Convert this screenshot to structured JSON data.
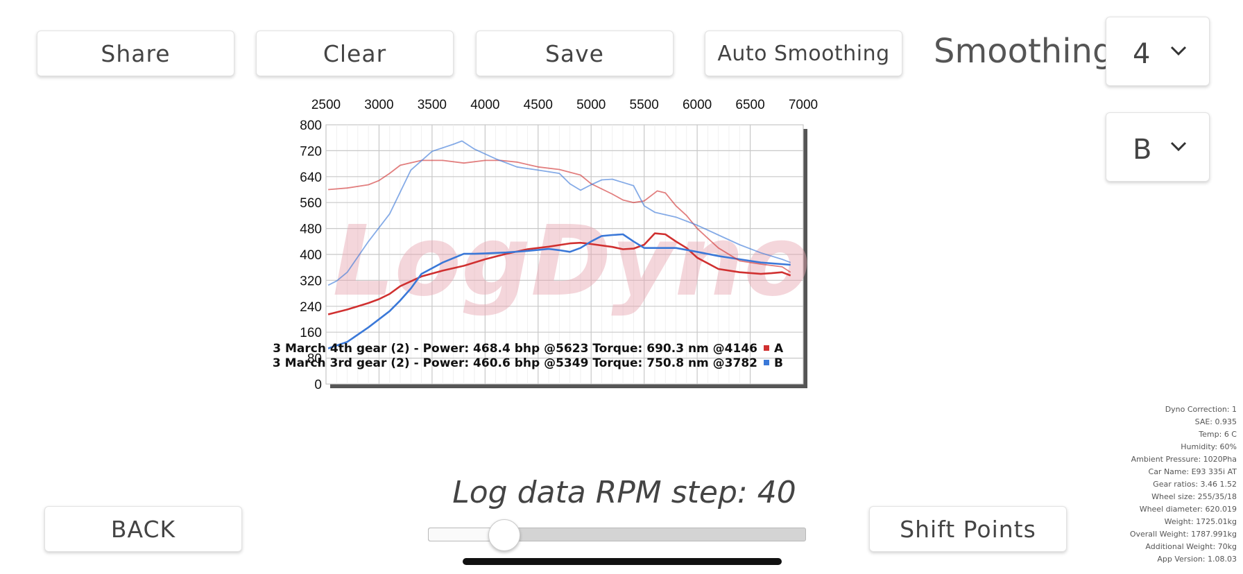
{
  "toolbar": {
    "share_label": "Share",
    "clear_label": "Clear",
    "save_label": "Save",
    "auto_smoothing_label": "Auto Smoothing"
  },
  "smoothing": {
    "label": "Smoothing:",
    "value": "4"
  },
  "run_select": {
    "value": "B"
  },
  "chart_data": {
    "type": "line",
    "watermark": "LogDyno",
    "x_ticks": [
      "2500",
      "3000",
      "3500",
      "4000",
      "4500",
      "5000",
      "5500",
      "6000",
      "6500",
      "7000"
    ],
    "y_ticks": [
      "800",
      "720",
      "640",
      "560",
      "480",
      "400",
      "320",
      "240",
      "160",
      "80",
      "0"
    ],
    "xlim": [
      2500,
      7000
    ],
    "ylim": [
      0,
      800
    ],
    "grid": true,
    "colors": {
      "A": "#d03030",
      "B": "#3a78d8"
    },
    "series": [
      {
        "name": "A",
        "kind": "power",
        "color": "#d03030",
        "x": [
          2520,
          2700,
          2900,
          3000,
          3100,
          3200,
          3400,
          3600,
          3800,
          4000,
          4200,
          4400,
          4600,
          4800,
          4900,
          5000,
          5200,
          5300,
          5400,
          5500,
          5600,
          5700,
          5800,
          5900,
          6000,
          6200,
          6400,
          6600,
          6700,
          6800,
          6880
        ],
        "y": [
          215,
          230,
          250,
          262,
          278,
          302,
          332,
          350,
          365,
          385,
          402,
          416,
          424,
          434,
          436,
          432,
          423,
          416,
          418,
          430,
          465,
          462,
          440,
          420,
          390,
          355,
          345,
          340,
          342,
          345,
          335
        ]
      },
      {
        "name": "B",
        "kind": "power",
        "color": "#3a78d8",
        "x": [
          2520,
          2700,
          2900,
          3100,
          3200,
          3300,
          3400,
          3600,
          3800,
          3900,
          4000,
          4200,
          4400,
          4600,
          4700,
          4800,
          4900,
          5000,
          5100,
          5200,
          5300,
          5400,
          5500,
          5600,
          5700,
          5800,
          6000,
          6200,
          6400,
          6600,
          6800,
          6880
        ],
        "y": [
          110,
          130,
          175,
          225,
          258,
          295,
          340,
          375,
          402,
          402,
          403,
          406,
          411,
          417,
          413,
          408,
          420,
          440,
          457,
          460,
          462,
          440,
          420,
          420,
          420,
          420,
          408,
          395,
          385,
          375,
          370,
          368
        ]
      },
      {
        "name": "A",
        "kind": "torque",
        "color": "#d03030",
        "x": [
          2520,
          2700,
          2900,
          3000,
          3100,
          3200,
          3400,
          3600,
          3800,
          4000,
          4146,
          4300,
          4500,
          4700,
          4900,
          5000,
          5200,
          5300,
          5400,
          5500,
          5600,
          5623,
          5700,
          5800,
          5900,
          6000,
          6200,
          6400,
          6600,
          6800,
          6880
        ],
        "y": [
          600,
          605,
          615,
          628,
          650,
          675,
          690,
          690,
          682,
          690,
          690,
          685,
          670,
          662,
          645,
          618,
          586,
          568,
          560,
          565,
          590,
          596,
          590,
          550,
          520,
          480,
          420,
          380,
          370,
          362,
          345
        ]
      },
      {
        "name": "B",
        "kind": "torque",
        "color": "#3a78d8",
        "x": [
          2520,
          2600,
          2700,
          2900,
          3100,
          3300,
          3500,
          3700,
          3782,
          3900,
          4100,
          4300,
          4500,
          4700,
          4800,
          4900,
          5000,
          5100,
          5200,
          5300,
          5400,
          5500,
          5600,
          5800,
          6000,
          6200,
          6400,
          6600,
          6800,
          6880
        ],
        "y": [
          305,
          318,
          345,
          440,
          525,
          660,
          718,
          740,
          750,
          725,
          695,
          670,
          660,
          650,
          618,
          598,
          615,
          630,
          632,
          622,
          612,
          550,
          530,
          515,
          490,
          460,
          430,
          405,
          385,
          375
        ]
      }
    ],
    "legend": [
      {
        "text": "3 March 4th gear (2) - Power: 468.4 bhp @5623 Torque: 690.3 nm @4146",
        "letter": "A",
        "color": "#d03030"
      },
      {
        "text": "3 March 3rd gear (2) - Power: 460.6 bhp @5349 Torque: 750.8 nm @3782",
        "letter": "B",
        "color": "#3a78d8"
      }
    ]
  },
  "log_data": {
    "label": "Log data RPM step: 40",
    "slider_fraction": 0.2
  },
  "nav": {
    "back_label": "BACK",
    "shift_points_label": "Shift Points"
  },
  "info": {
    "lines": [
      "Dyno Correction: 1",
      "SAE: 0.935",
      "Temp: 6 C",
      "Humidity: 60%",
      "Ambient Pressure: 1020Pha",
      "Car Name: E93 335i AT",
      "Gear ratios: 3.46 1.52",
      "Wheel size: 255/35/18",
      "Wheel diameter: 620.019",
      "Weight: 1725.01kg",
      "Overall Weight: 1787.991kg",
      "Additional Weight: 70kg",
      "App Version: 1.08.03"
    ]
  }
}
